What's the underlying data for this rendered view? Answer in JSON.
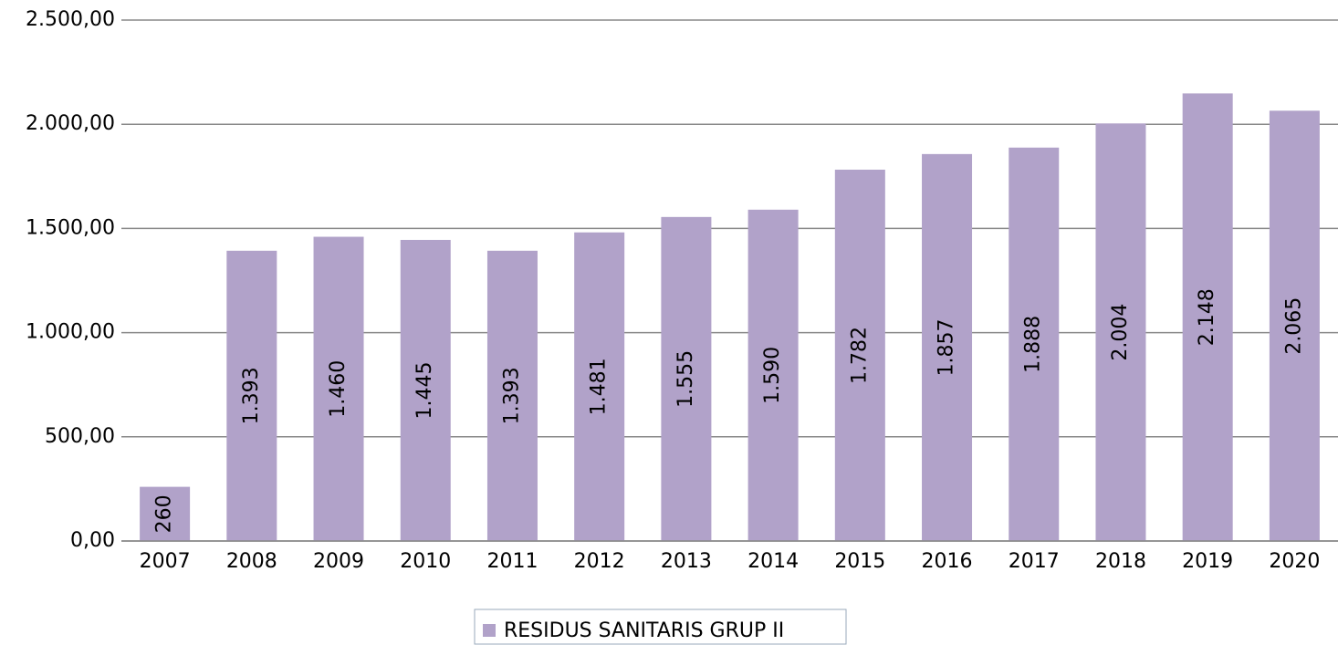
{
  "chart_data": {
    "type": "bar",
    "categories": [
      "2007",
      "2008",
      "2009",
      "2010",
      "2011",
      "2012",
      "2013",
      "2014",
      "2015",
      "2016",
      "2017",
      "2018",
      "2019",
      "2020"
    ],
    "series": [
      {
        "name": "RESIDUS SANITARIS GRUP II",
        "color": "#b1a2c9",
        "values": [
          260,
          1393,
          1460,
          1445,
          1393,
          1481,
          1555,
          1590,
          1782,
          1857,
          1888,
          2004,
          2148,
          2065
        ],
        "value_labels": [
          "260",
          "1.393",
          "1.460",
          "1.445",
          "1.393",
          "1.481",
          "1.555",
          "1.590",
          "1.782",
          "1.857",
          "1.888",
          "2.004",
          "2.148",
          "2.065"
        ]
      }
    ],
    "ylim": [
      0,
      2500
    ],
    "yticks": [
      {
        "value": 0,
        "label": "0,00"
      },
      {
        "value": 500,
        "label": "500,00"
      },
      {
        "value": 1000,
        "label": "1.000,00"
      },
      {
        "value": 1500,
        "label": "1.500,00"
      },
      {
        "value": 2000,
        "label": "2.000,00"
      },
      {
        "value": 2500,
        "label": "2.500,00"
      }
    ],
    "grid": true,
    "legend": "bottom"
  }
}
